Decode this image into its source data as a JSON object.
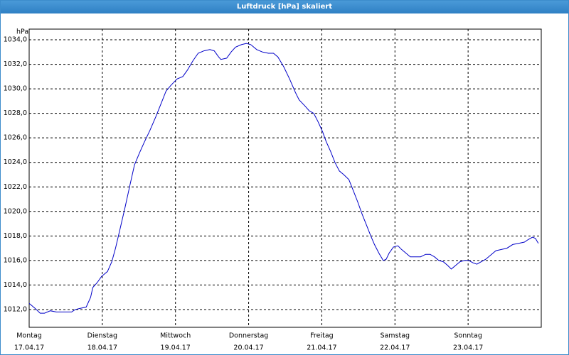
{
  "chart_data": {
    "type": "line",
    "title": "Luftdruck [hPa] skaliert",
    "y_label": "hPa",
    "color": "#0000c8",
    "grid": true,
    "grid_style": "dashed",
    "xlim": [
      0,
      7
    ],
    "ylim": [
      1010.55,
      1034.87
    ],
    "xticks": [
      {
        "value": 0,
        "label": [
          "Montag",
          "17.04.17"
        ]
      },
      {
        "value": 1,
        "label": [
          "Dienstag",
          "18.04.17"
        ]
      },
      {
        "value": 2,
        "label": [
          "Mittwoch",
          "19.04.17"
        ]
      },
      {
        "value": 3,
        "label": [
          "Donnerstag",
          "20.04.17"
        ]
      },
      {
        "value": 4,
        "label": [
          "Freitag",
          "21.04.17"
        ]
      },
      {
        "value": 5,
        "label": [
          "Samstag",
          "22.04.17"
        ]
      },
      {
        "value": 6,
        "label": [
          "Sonntag",
          "23.04.17"
        ]
      }
    ],
    "yticks": [
      {
        "value": 1012,
        "label": "1012,0"
      },
      {
        "value": 1014,
        "label": "1014,0"
      },
      {
        "value": 1016,
        "label": "1016,0"
      },
      {
        "value": 1018,
        "label": "1018,0"
      },
      {
        "value": 1020,
        "label": "1020,0"
      },
      {
        "value": 1022,
        "label": "1022,0"
      },
      {
        "value": 1024,
        "label": "1024,0"
      },
      {
        "value": 1026,
        "label": "1026,0"
      },
      {
        "value": 1028,
        "label": "1028,0"
      },
      {
        "value": 1030,
        "label": "1030,0"
      },
      {
        "value": 1032,
        "label": "1032,0"
      },
      {
        "value": 1034,
        "label": "1034,0"
      }
    ],
    "x": [
      0,
      0.08,
      0.15,
      0.21,
      0.29,
      0.37,
      0.49,
      0.58,
      0.63,
      0.7,
      0.78,
      0.84,
      0.87,
      0.93,
      0.99,
      1.07,
      1.13,
      1.18,
      1.24,
      1.31,
      1.38,
      1.44,
      1.51,
      1.57,
      1.65,
      1.73,
      1.81,
      1.87,
      1.94,
      2.02,
      2.1,
      2.16,
      2.24,
      2.31,
      2.39,
      2.47,
      2.53,
      2.59,
      2.62,
      2.7,
      2.76,
      2.82,
      2.9,
      2.97,
      3.03,
      3.11,
      3.19,
      3.27,
      3.34,
      3.4,
      3.48,
      3.56,
      3.64,
      3.69,
      3.77,
      3.83,
      3.89,
      3.95,
      4.01,
      4.06,
      4.12,
      4.18,
      4.24,
      4.3,
      4.37,
      4.43,
      4.49,
      4.55,
      4.61,
      4.67,
      4.72,
      4.78,
      4.84,
      4.88,
      4.92,
      4.98,
      5.04,
      5.09,
      5.15,
      5.21,
      5.29,
      5.35,
      5.42,
      5.48,
      5.54,
      5.6,
      5.66,
      5.72,
      5.77,
      5.83,
      5.89,
      5.95,
      6.01,
      6.07,
      6.12,
      6.18,
      6.24,
      6.32,
      6.38,
      6.46,
      6.53,
      6.61,
      6.69,
      6.77,
      6.82,
      6.88,
      6.92,
      6.96
    ],
    "values": [
      1012.5,
      1012.1,
      1011.7,
      1011.7,
      1011.9,
      1011.8,
      1011.8,
      1011.8,
      1012.0,
      1012.1,
      1012.2,
      1013.0,
      1013.8,
      1014.2,
      1014.7,
      1015.1,
      1015.9,
      1017.0,
      1018.5,
      1020.3,
      1022.2,
      1023.8,
      1024.8,
      1025.6,
      1026.6,
      1027.7,
      1028.9,
      1029.8,
      1030.3,
      1030.8,
      1031.0,
      1031.5,
      1032.3,
      1032.9,
      1033.1,
      1033.2,
      1033.1,
      1032.6,
      1032.4,
      1032.5,
      1033.0,
      1033.4,
      1033.6,
      1033.7,
      1033.6,
      1033.2,
      1033.0,
      1032.9,
      1032.9,
      1032.6,
      1031.8,
      1030.8,
      1029.7,
      1029.1,
      1028.6,
      1028.2,
      1028.0,
      1027.3,
      1026.5,
      1025.7,
      1024.9,
      1024.0,
      1023.3,
      1023.0,
      1022.6,
      1021.7,
      1020.8,
      1019.8,
      1018.9,
      1018.0,
      1017.3,
      1016.6,
      1016.0,
      1016.1,
      1016.6,
      1017.1,
      1017.2,
      1016.9,
      1016.6,
      1016.3,
      1016.3,
      1016.3,
      1016.5,
      1016.5,
      1016.3,
      1016.0,
      1015.9,
      1015.6,
      1015.3,
      1015.6,
      1015.9,
      1016.0,
      1016.0,
      1015.8,
      1015.7,
      1015.9,
      1016.1,
      1016.5,
      1016.8,
      1016.9,
      1017.0,
      1017.3,
      1017.4,
      1017.5,
      1017.7,
      1017.9,
      1017.8,
      1017.4
    ]
  }
}
